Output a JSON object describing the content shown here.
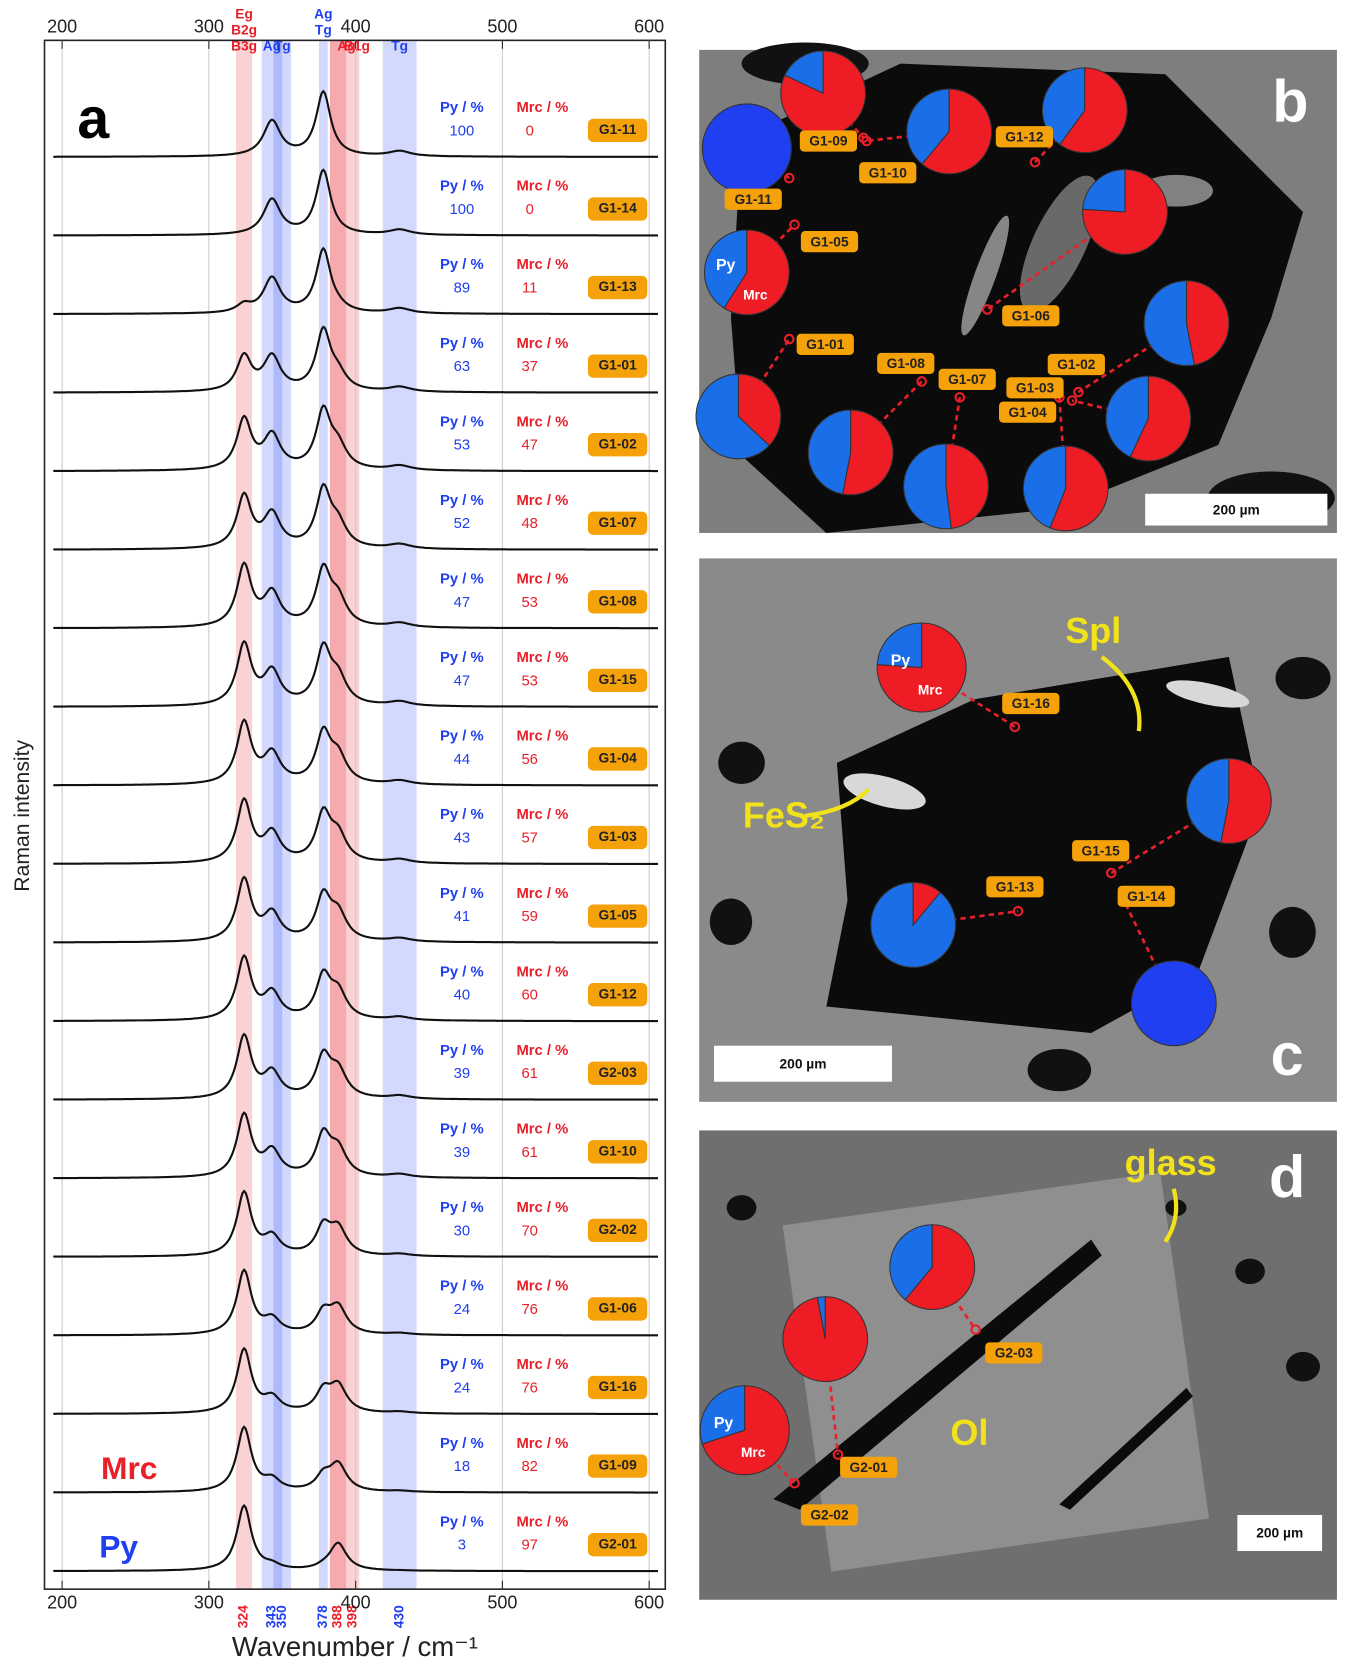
{
  "chart_data": {
    "type": "spectra",
    "panel_label": "a",
    "x_label": "Wavenumber / cm⁻¹",
    "y_label": "Raman intensity",
    "xlim": [
      188,
      611
    ],
    "xticks": [
      200,
      300,
      400,
      500,
      600
    ],
    "grid": true,
    "py_header": "Py / %",
    "mrc_header": "Mrc / %",
    "py_name": "Py",
    "mrc_name": "Mrc",
    "py_color": "#1f3ff0",
    "mrc_color": "#e8202a",
    "series": [
      {
        "name": "G1-11",
        "py": 100,
        "mrc": 0
      },
      {
        "name": "G1-14",
        "py": 100,
        "mrc": 0
      },
      {
        "name": "G1-13",
        "py": 89,
        "mrc": 11
      },
      {
        "name": "G1-01",
        "py": 63,
        "mrc": 37
      },
      {
        "name": "G1-02",
        "py": 53,
        "mrc": 47
      },
      {
        "name": "G1-07",
        "py": 52,
        "mrc": 48
      },
      {
        "name": "G1-08",
        "py": 47,
        "mrc": 53
      },
      {
        "name": "G1-15",
        "py": 47,
        "mrc": 53
      },
      {
        "name": "G1-04",
        "py": 44,
        "mrc": 56
      },
      {
        "name": "G1-03",
        "py": 43,
        "mrc": 57
      },
      {
        "name": "G1-05",
        "py": 41,
        "mrc": 59
      },
      {
        "name": "G1-12",
        "py": 40,
        "mrc": 60
      },
      {
        "name": "G2-03",
        "py": 39,
        "mrc": 61
      },
      {
        "name": "G1-10",
        "py": 39,
        "mrc": 61
      },
      {
        "name": "G2-02",
        "py": 30,
        "mrc": 70
      },
      {
        "name": "G1-06",
        "py": 24,
        "mrc": 76
      },
      {
        "name": "G1-16",
        "py": 24,
        "mrc": 76
      },
      {
        "name": "G1-09",
        "py": 18,
        "mrc": 82
      },
      {
        "name": "G2-01",
        "py": 3,
        "mrc": 97
      }
    ],
    "bands": [
      {
        "position": 324,
        "color": "#e8202a",
        "labels": [
          "Eg",
          "B2g",
          "B3g"
        ]
      },
      {
        "position": 343,
        "color": "#1f3ff0",
        "labels": [
          "Ag"
        ]
      },
      {
        "position": 350,
        "color": "#1f3ff0",
        "labels": [
          "Tg"
        ]
      },
      {
        "position": 378,
        "color": "#1f3ff0",
        "labels": [
          "Ag",
          "Tg"
        ]
      },
      {
        "position": 388,
        "color": "#e8202a",
        "labels": [
          "Ag"
        ]
      },
      {
        "position": 398,
        "color": "#e8202a",
        "labels": [
          "B1g"
        ]
      },
      {
        "position": 430,
        "color": "#1f3ff0",
        "labels": [
          "Tg"
        ]
      }
    ]
  },
  "panels": [
    {
      "label": "b",
      "scale_bar": "200 µm",
      "annotations": []
    },
    {
      "label": "c",
      "scale_bar": "200 µm",
      "annotations": [
        "Spl",
        "FeS₂"
      ]
    },
    {
      "label": "d",
      "scale_bar": "200 µm",
      "annotations": [
        "glass",
        "Ol"
      ]
    }
  ]
}
